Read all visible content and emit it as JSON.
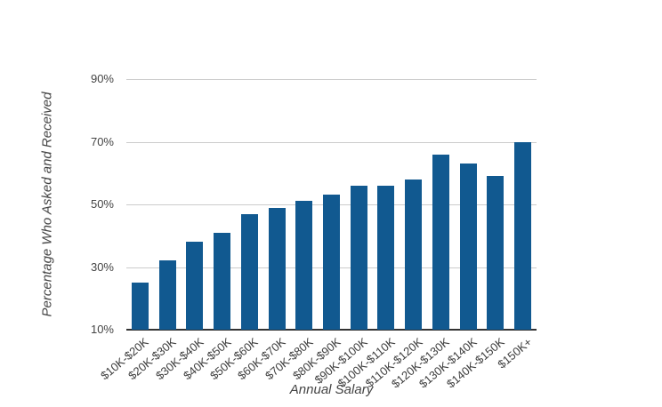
{
  "chart_data": {
    "type": "bar",
    "title": "",
    "xlabel": "Annual Salary",
    "ylabel": "Percentage Who Asked and Received",
    "categories": [
      "$10K-$20K",
      "$20K-$30K",
      "$30K-$40K",
      "$40K-$50K",
      "$50K-$60K",
      "$60K-$70K",
      "$70K-$80K",
      "$80K-$90K",
      "$90K-$100K",
      "$100K-$110K",
      "$110K-$120K",
      "$120K-$130K",
      "$130K-$140K",
      "$140K-$150K",
      "$150K+"
    ],
    "values": [
      25,
      32,
      38,
      41,
      47,
      49,
      51,
      53,
      56,
      56,
      58,
      66,
      63,
      59,
      70
    ],
    "unit": "%",
    "ylim": [
      10,
      90
    ],
    "ytick_values": [
      10,
      30,
      50,
      70,
      90
    ],
    "ytick_labels": [
      "10%",
      "30%",
      "50%",
      "70%",
      "90%"
    ],
    "grid": true,
    "legend": "none",
    "colors": {
      "bar": "#115990",
      "gridline": "#cccccc",
      "axis_line": "#333333",
      "text": "#444444"
    }
  }
}
